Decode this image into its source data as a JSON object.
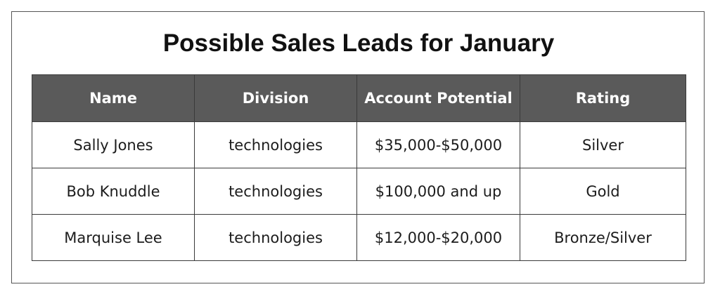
{
  "title": "Possible Sales Leads for January",
  "table": {
    "headers": [
      "Name",
      "Division",
      "Account Potential",
      "Rating"
    ],
    "rows": [
      [
        "Sally Jones",
        "technologies",
        "$35,000-$50,000",
        "Silver"
      ],
      [
        "Bob Knuddle",
        "technologies",
        "$100,000 and up",
        "Gold"
      ],
      [
        "Marquise Lee",
        "technologies",
        "$12,000-$20,000",
        "Bronze/Silver"
      ]
    ]
  },
  "colors": {
    "header_background": "#5a5a5a",
    "header_text": "#ffffff",
    "border": "#3a3a3a"
  }
}
